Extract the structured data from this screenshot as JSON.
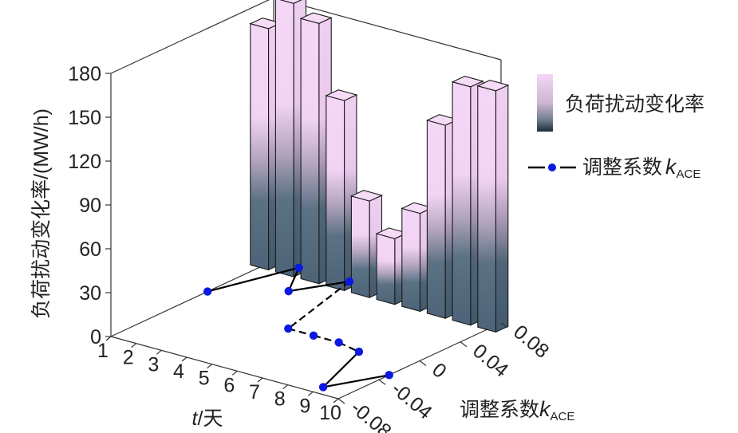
{
  "chart_data": {
    "type": "bar",
    "title": "",
    "x_axis": {
      "label_italic": "t",
      "label_rest": "/天",
      "ticks": [
        "1",
        "2",
        "3",
        "4",
        "5",
        "6",
        "7",
        "8",
        "9",
        "10"
      ]
    },
    "y_axis": {
      "label_main": "调整系数",
      "label_k": "k",
      "label_sub": "ACE",
      "ticks": [
        "-0.08",
        "-0.04",
        "0",
        "0.04",
        "0.08"
      ]
    },
    "z_axis": {
      "label": "负荷扰动变化率/(MW/h)",
      "range": [
        0,
        180
      ],
      "ticks": [
        "0",
        "30",
        "60",
        "90",
        "120",
        "150",
        "180"
      ]
    },
    "bar_series": {
      "name": "负荷扰动变化率",
      "days": [
        1,
        2,
        3,
        4,
        5,
        6,
        7,
        8,
        9,
        10
      ],
      "values": [
        165,
        187,
        178,
        130,
        66,
        45,
        67,
        132,
        163,
        165
      ]
    },
    "line_series": {
      "name": "调整系数kACE",
      "days": [
        1,
        2,
        3,
        4,
        5,
        6,
        7,
        8,
        9,
        10
      ],
      "values": [
        0.015,
        0.08,
        0.045,
        0.08,
        -0.005,
        -0.005,
        -0.005,
        -0.01,
        -0.07,
        -0.03
      ]
    },
    "legend": {
      "bar_label": "负荷扰动变化率",
      "line_label_main": "调整系数",
      "line_label_k": "k",
      "line_label_sub": "ACE",
      "placement": "right"
    },
    "colors": {
      "bar_top": "#f4d6f6",
      "bar_bottom": "#4d6478",
      "edge": "#1b1b1b",
      "marker": "#0a19e0",
      "line": "#000000"
    }
  }
}
